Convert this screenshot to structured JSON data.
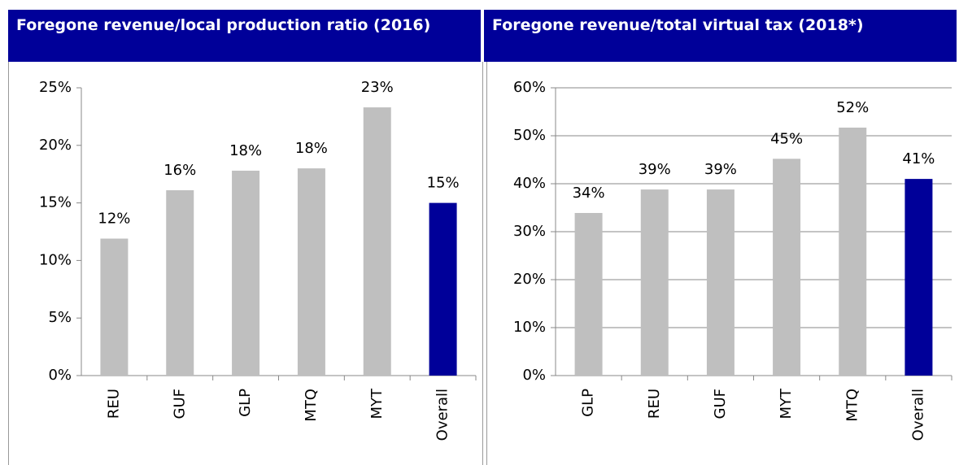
{
  "chart_data": [
    {
      "type": "bar",
      "title": "Foregone revenue/local production ratio (2016)",
      "categories": [
        "REU",
        "GUF",
        "GLP",
        "MTQ",
        "MYT",
        "Overall"
      ],
      "values": [
        11.9,
        16.1,
        17.8,
        18,
        23.3,
        15
      ],
      "value_labels": [
        "12%",
        "16%",
        "18%",
        "18%",
        "23%",
        "15%"
      ],
      "colors": [
        "#bfbfbf",
        "#bfbfbf",
        "#bfbfbf",
        "#bfbfbf",
        "#bfbfbf",
        "#000099"
      ],
      "ylim": [
        0,
        25
      ],
      "yticks": [
        {
          "value": 0,
          "label": "0%"
        },
        {
          "value": 5,
          "label": "5%"
        },
        {
          "value": 10,
          "label": "10%"
        },
        {
          "value": 15,
          "label": "15%"
        },
        {
          "value": 20,
          "label": "20%"
        },
        {
          "value": 25,
          "label": "25%"
        }
      ],
      "grid": false
    },
    {
      "type": "bar",
      "title": "Foregone revenue/total virtual tax (2018*)",
      "categories": [
        "GLP",
        "REU",
        "GUF",
        "MYT",
        "MTQ",
        "Overall"
      ],
      "values": [
        33.9,
        38.8,
        38.8,
        45.2,
        51.7,
        41
      ],
      "value_labels": [
        "34%",
        "39%",
        "39%",
        "45%",
        "52%",
        "41%"
      ],
      "colors": [
        "#bfbfbf",
        "#bfbfbf",
        "#bfbfbf",
        "#bfbfbf",
        "#bfbfbf",
        "#000099"
      ],
      "ylim": [
        0,
        60
      ],
      "yticks": [
        {
          "value": 0,
          "label": "0%"
        },
        {
          "value": 10,
          "label": "10%"
        },
        {
          "value": 20,
          "label": "20%"
        },
        {
          "value": 30,
          "label": "30%"
        },
        {
          "value": 40,
          "label": "40%"
        },
        {
          "value": 50,
          "label": "50%"
        },
        {
          "value": 60,
          "label": "60%"
        }
      ],
      "grid": true
    }
  ]
}
